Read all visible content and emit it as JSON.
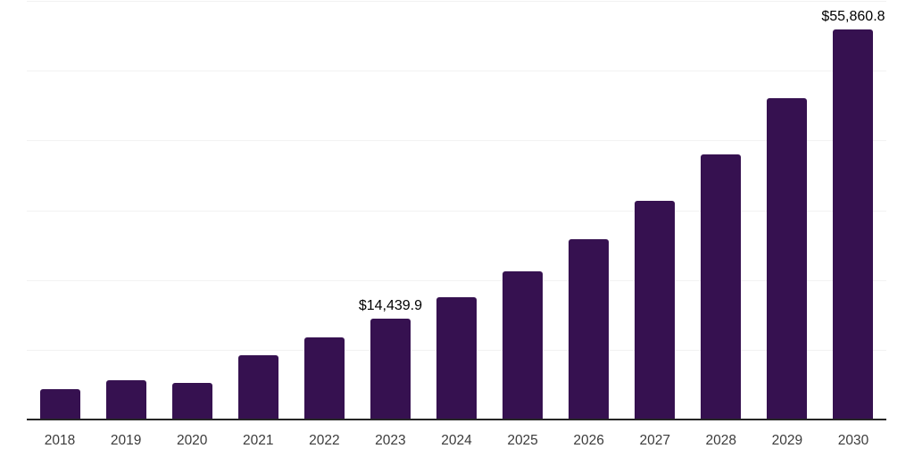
{
  "chart_data": {
    "type": "bar",
    "title": "",
    "xlabel": "",
    "ylabel": "",
    "categories": [
      "2018",
      "2019",
      "2020",
      "2021",
      "2022",
      "2023",
      "2024",
      "2025",
      "2026",
      "2027",
      "2028",
      "2029",
      "2030"
    ],
    "values": [
      4390,
      5630,
      5210,
      9210,
      11810,
      14439.9,
      17520,
      21260,
      25790,
      31290,
      37970,
      46070,
      55860.8
    ],
    "data_labels": {
      "2023": "$14,439.9",
      "2030": "$55,860.8"
    },
    "ylim": [
      0,
      60000
    ],
    "gridline_interval": 10000,
    "grid": "horizontal",
    "legend": "none",
    "currency": "$",
    "colors": {
      "bar": "#361150",
      "gridline": "#f2f2f2",
      "axis_line": "#262626",
      "tick_label": "#3c3c3c",
      "data_label": "#000000",
      "background": "#ffffff"
    }
  }
}
